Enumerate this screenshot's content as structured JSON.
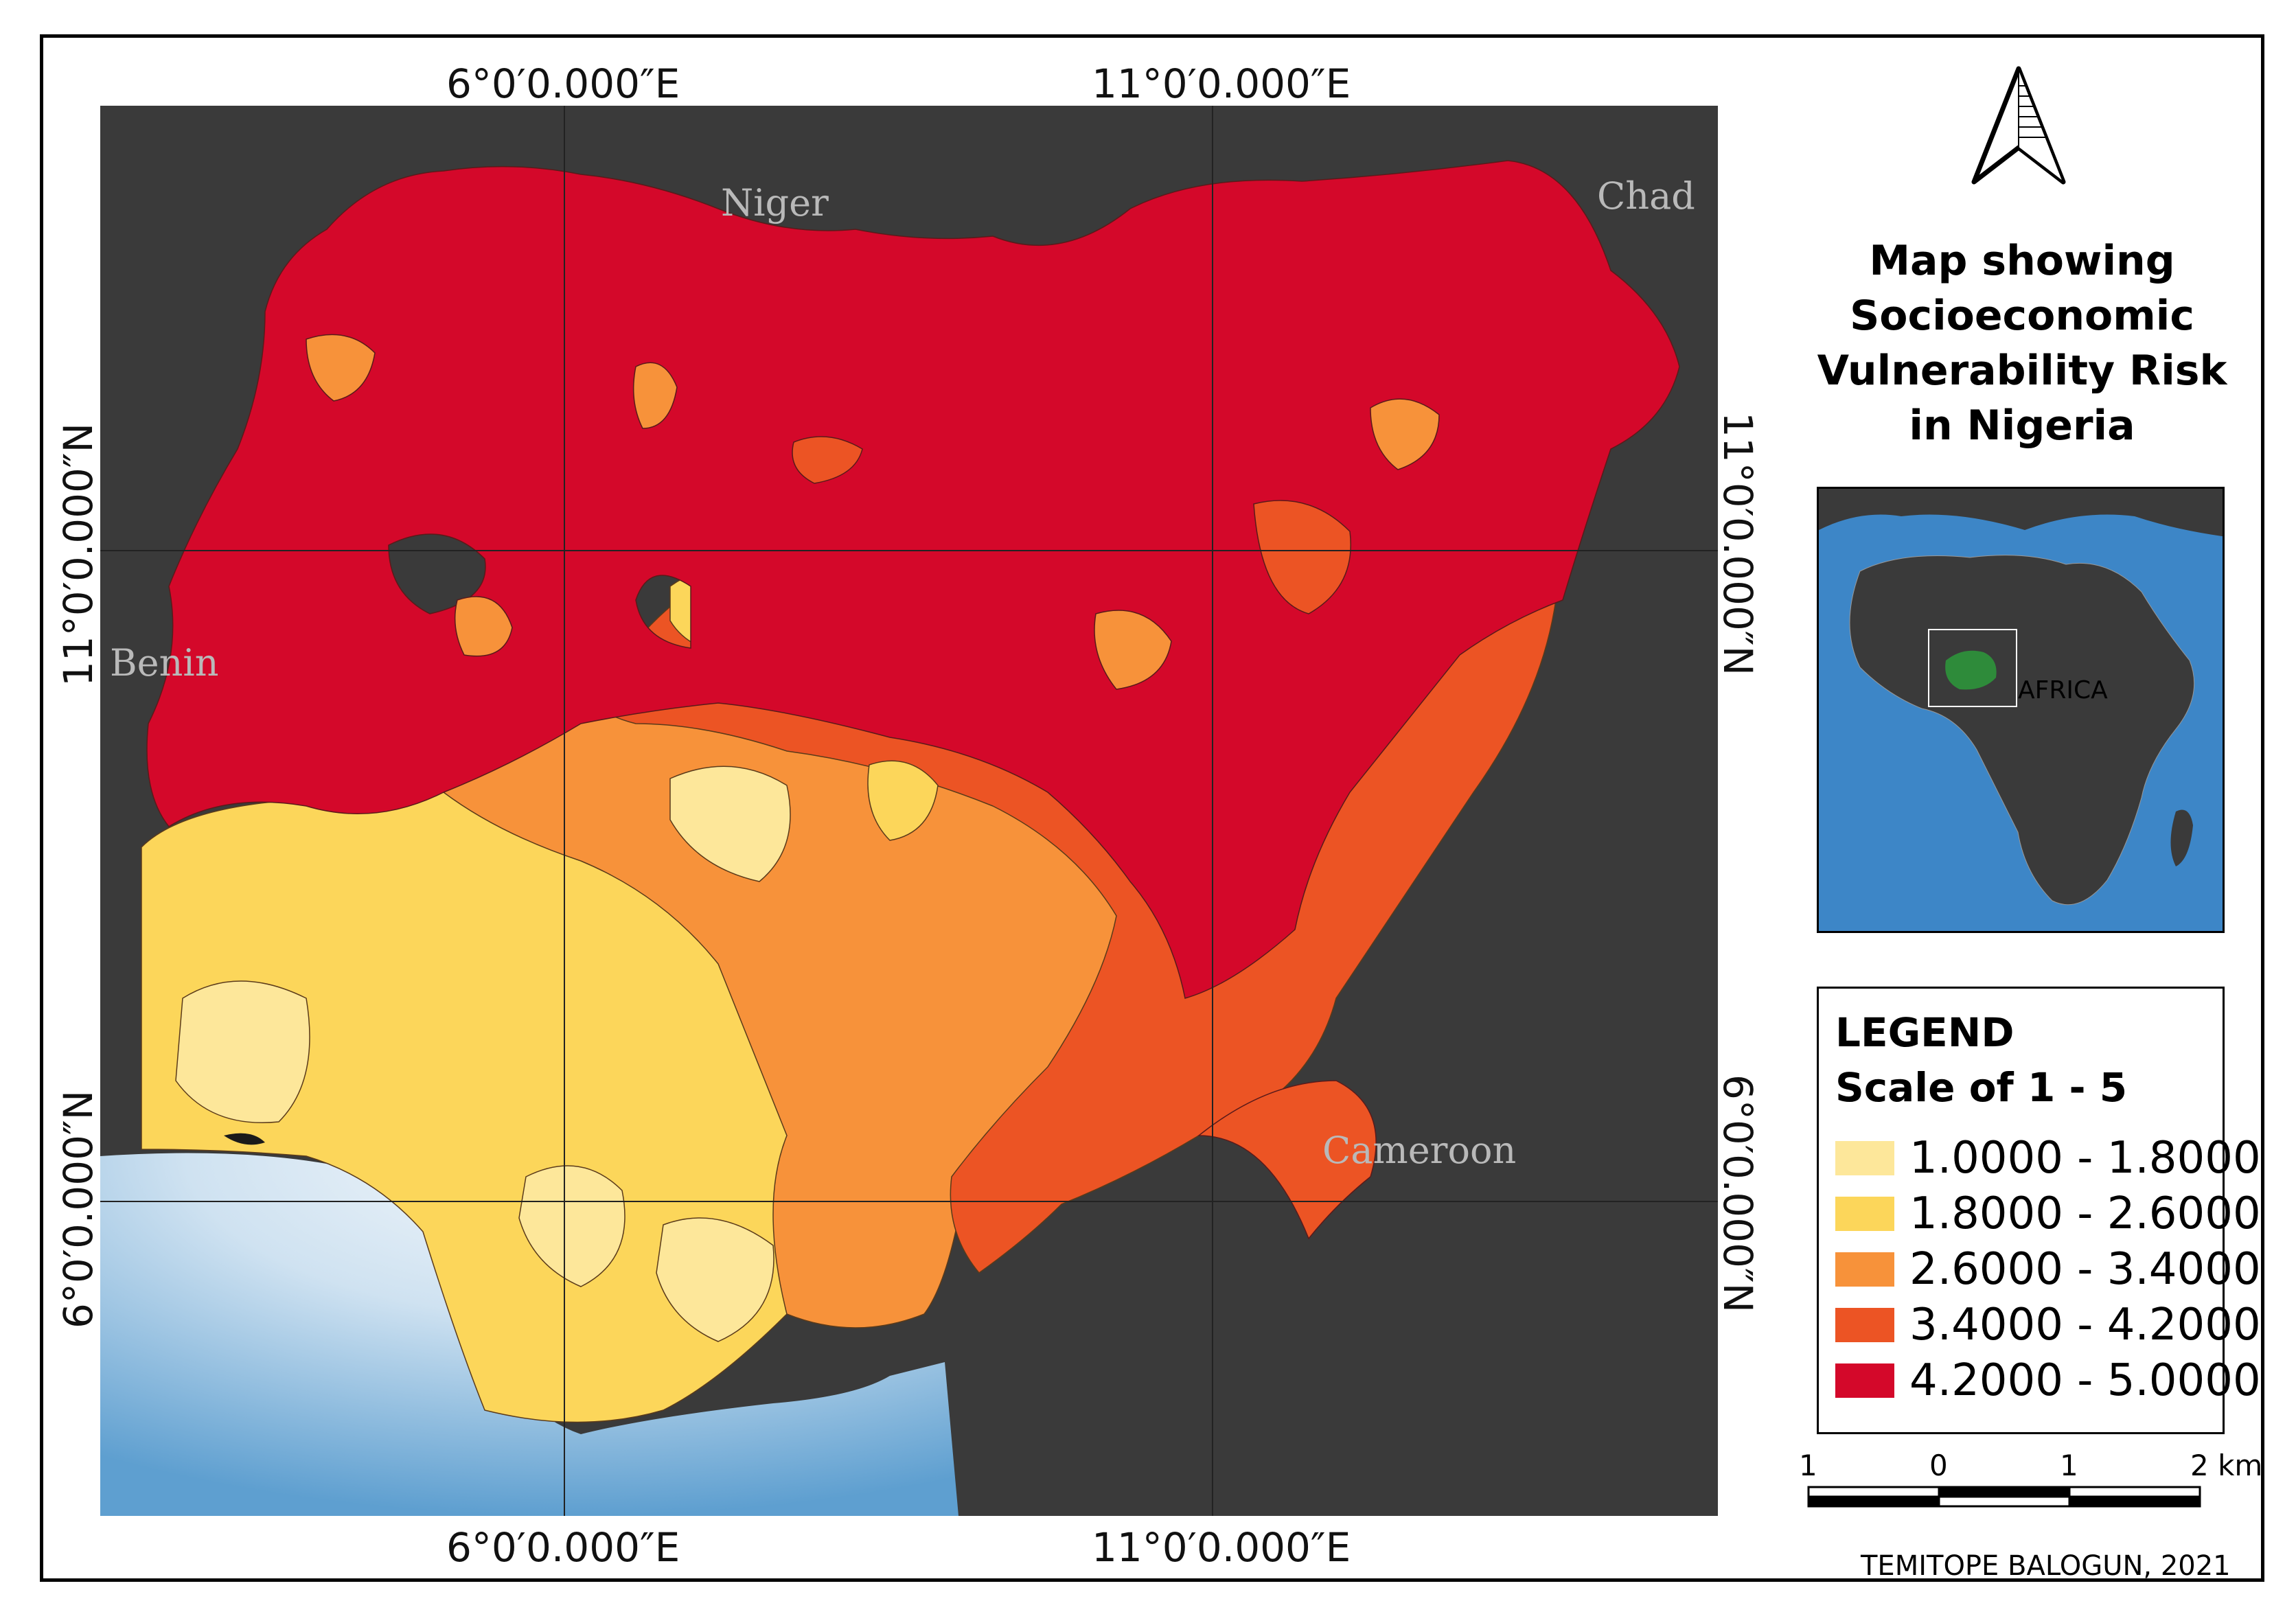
{
  "title": "Map showing Socioeconomic Vulnerability Risk in Nigeria",
  "graticule": {
    "top_x_labels": [
      "6°0′0.000″E",
      "11°0′0.000″E"
    ],
    "bottom_x_labels": [
      "6°0′0.000″E",
      "11°0′0.000″E"
    ],
    "left_y_labels": [
      "11°0′0.000″N",
      "6°0′0.000″N"
    ],
    "right_y_labels": [
      "11°0′0.000″N",
      "6°0′0.000″N"
    ]
  },
  "countries": {
    "niger": "Niger",
    "chad": "Chad",
    "benin": "Benin",
    "cameroon": "Cameroon"
  },
  "inset": {
    "label": "AFRICA",
    "highlight_color": "#2e8b3a"
  },
  "legend": {
    "heading": "LEGEND",
    "subheading": "Scale of 1 - 5",
    "classes": [
      {
        "label": "1.0000 - 1.8000",
        "color": "#fde79a"
      },
      {
        "label": "1.8000 - 2.6000",
        "color": "#fcd65a"
      },
      {
        "label": "2.6000 - 3.4000",
        "color": "#f7923a"
      },
      {
        "label": "3.4000 - 4.2000",
        "color": "#ec5424"
      },
      {
        "label": "4.2000 - 5.0000",
        "color": "#d4082a"
      }
    ]
  },
  "scale_bar": {
    "labels": [
      "1",
      "0",
      "1",
      "2 km"
    ]
  },
  "credit": "TEMITOPE BALOGUN, 2021",
  "colors": {
    "land_outside": "#3a3a3a",
    "ocean_light": "#e8f1f8",
    "ocean_deep": "#6aaad6"
  }
}
